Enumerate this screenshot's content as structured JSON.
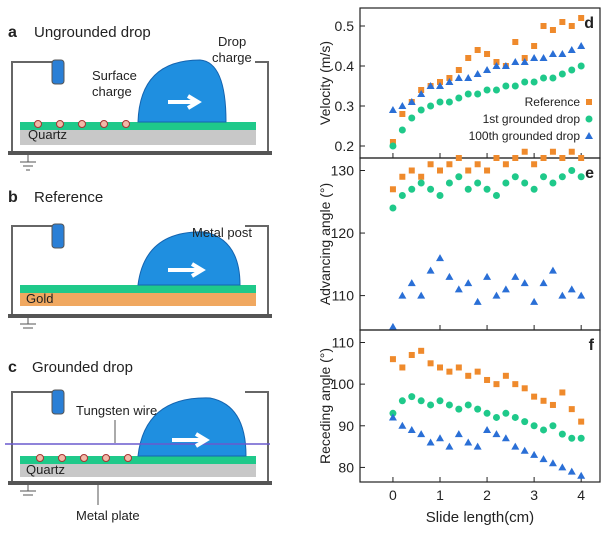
{
  "diagrams": {
    "a": {
      "letter": "a",
      "title": "Ungrounded drop",
      "drop_label": [
        "Drop",
        "charge"
      ],
      "surface_label": [
        "Surface",
        "charge"
      ],
      "substrate": "Quartz"
    },
    "b": {
      "letter": "b",
      "title": "Reference",
      "post_label": "Metal post",
      "substrate": "Gold"
    },
    "c": {
      "letter": "c",
      "title": "Grounded drop",
      "wire_label": "Tungsten wire",
      "substrate": "Quartz",
      "plate_label": "Metal plate"
    }
  },
  "chart_data": [
    {
      "type": "scatter",
      "panel_label": "d",
      "y_label": "Velocity (m/s)",
      "xlim": [
        -0.7,
        4.4
      ],
      "ylim": [
        0.17,
        0.545
      ],
      "yticks": [
        0.2,
        0.3,
        0.4,
        0.5
      ],
      "legend_position": "right",
      "x": [
        0,
        0.2,
        0.4,
        0.6,
        0.8,
        1.0,
        1.2,
        1.4,
        1.6,
        1.8,
        2.0,
        2.2,
        2.4,
        2.6,
        2.8,
        3.0,
        3.2,
        3.4,
        3.6,
        3.8,
        4.0
      ],
      "series": [
        {
          "name": "Reference",
          "color": "#ef8a2c",
          "marker": "square",
          "values": [
            0.21,
            0.28,
            0.31,
            0.34,
            0.35,
            0.36,
            0.37,
            0.39,
            0.42,
            0.44,
            0.43,
            0.41,
            0.4,
            0.46,
            0.42,
            0.45,
            0.5,
            0.49,
            0.51,
            0.5,
            0.52
          ]
        },
        {
          "name": "1st grounded drop",
          "color": "#1fc98a",
          "marker": "circle",
          "values": [
            0.2,
            0.24,
            0.27,
            0.29,
            0.3,
            0.31,
            0.31,
            0.32,
            0.33,
            0.33,
            0.34,
            0.34,
            0.35,
            0.35,
            0.36,
            0.36,
            0.37,
            0.37,
            0.38,
            0.39,
            0.4
          ]
        },
        {
          "name": "100th grounded drop",
          "color": "#2a6fd6",
          "marker": "triangle",
          "values": [
            0.29,
            0.3,
            0.31,
            0.33,
            0.35,
            0.35,
            0.36,
            0.37,
            0.37,
            0.38,
            0.39,
            0.4,
            0.4,
            0.41,
            0.41,
            0.42,
            0.42,
            0.43,
            0.43,
            0.44,
            0.45
          ]
        }
      ]
    },
    {
      "type": "scatter",
      "panel_label": "e",
      "y_label": "Advancing angle (°)",
      "xlim": [
        -0.7,
        4.4
      ],
      "ylim": [
        104.5,
        132
      ],
      "yticks": [
        110,
        120,
        130
      ],
      "x": [
        0,
        0.2,
        0.4,
        0.6,
        0.8,
        1.0,
        1.2,
        1.4,
        1.6,
        1.8,
        2.0,
        2.2,
        2.4,
        2.6,
        2.8,
        3.0,
        3.2,
        3.4,
        3.6,
        3.8,
        4.0
      ],
      "series": [
        {
          "name": "Reference",
          "color": "#ef8a2c",
          "marker": "square",
          "values": [
            127,
            129,
            130,
            129,
            131,
            130,
            131,
            132,
            130,
            131,
            130,
            132,
            131,
            132,
            133,
            131,
            132,
            133,
            132,
            133,
            132
          ]
        },
        {
          "name": "1st grounded drop",
          "color": "#1fc98a",
          "marker": "circle",
          "values": [
            124,
            126,
            127,
            128,
            127,
            126,
            128,
            129,
            127,
            128,
            127,
            126,
            128,
            129,
            128,
            127,
            129,
            128,
            129,
            130,
            129
          ]
        },
        {
          "name": "100th grounded drop",
          "color": "#2a6fd6",
          "marker": "triangle",
          "values": [
            105,
            110,
            112,
            110,
            114,
            116,
            113,
            111,
            112,
            109,
            113,
            110,
            111,
            113,
            112,
            109,
            112,
            114,
            110,
            111,
            110
          ]
        }
      ]
    },
    {
      "type": "scatter",
      "panel_label": "f",
      "y_label": "Receding angle (°)",
      "x_label": "Slide length(cm)",
      "xlim": [
        -0.7,
        4.4
      ],
      "ylim": [
        76.5,
        113
      ],
      "yticks": [
        80,
        90,
        100,
        110
      ],
      "xticks": [
        0,
        1,
        2,
        3,
        4
      ],
      "x": [
        0,
        0.2,
        0.4,
        0.6,
        0.8,
        1.0,
        1.2,
        1.4,
        1.6,
        1.8,
        2.0,
        2.2,
        2.4,
        2.6,
        2.8,
        3.0,
        3.2,
        3.4,
        3.6,
        3.8,
        4.0
      ],
      "series": [
        {
          "name": "Reference",
          "color": "#ef8a2c",
          "marker": "square",
          "values": [
            106,
            104,
            107,
            108,
            105,
            104,
            103,
            104,
            102,
            103,
            101,
            100,
            102,
            100,
            99,
            97,
            96,
            95,
            98,
            94,
            91
          ]
        },
        {
          "name": "1st grounded drop",
          "color": "#1fc98a",
          "marker": "circle",
          "values": [
            93,
            96,
            97,
            96,
            95,
            96,
            95,
            94,
            95,
            94,
            93,
            92,
            93,
            92,
            91,
            90,
            89,
            90,
            88,
            87,
            87
          ]
        },
        {
          "name": "100th grounded drop",
          "color": "#2a6fd6",
          "marker": "triangle",
          "values": [
            92,
            90,
            89,
            88,
            86,
            87,
            85,
            88,
            86,
            85,
            89,
            88,
            87,
            85,
            84,
            83,
            82,
            81,
            80,
            79,
            78
          ]
        }
      ]
    }
  ]
}
